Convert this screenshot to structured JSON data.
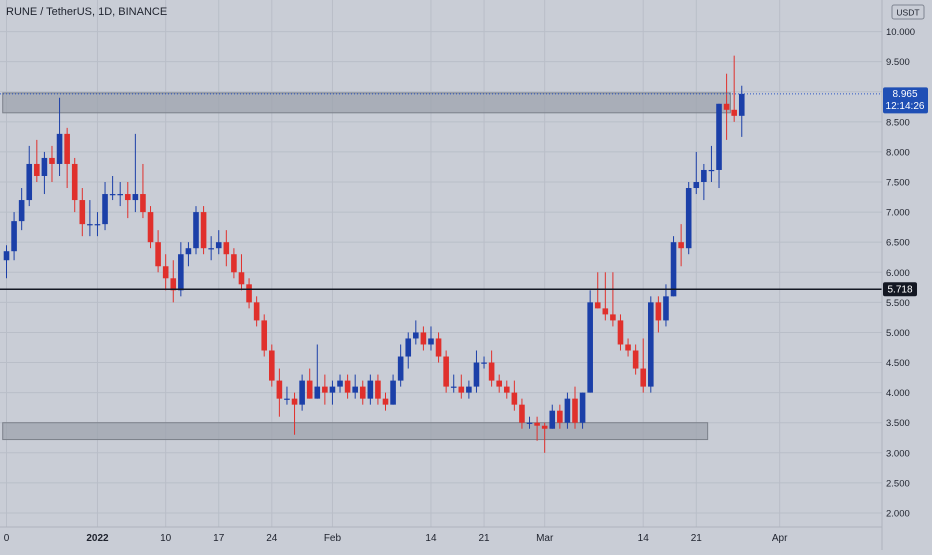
{
  "header": {
    "title": "RUNE / TetherUS, 1D, BINANCE",
    "currency": "USDT"
  },
  "price_tags": {
    "last_price": "8.965",
    "countdown": "12:14:26",
    "level": "5.718"
  },
  "colors": {
    "background": "#c9cdd6",
    "up": "#1b3fa8",
    "down": "#e0302c",
    "zone": "#9ea3ad",
    "grid": "#b9bec8",
    "tag_blue": "#1f4fb5",
    "tag_black": "#131722"
  },
  "chart_data": {
    "type": "candlestick",
    "title": "RUNE / TetherUS, 1D, BINANCE",
    "y_ticks": [
      "2.000",
      "2.500",
      "3.000",
      "3.500",
      "4.000",
      "4.500",
      "5.000",
      "5.500",
      "6.000",
      "6.500",
      "7.000",
      "7.500",
      "8.000",
      "8.500",
      "9.000",
      "9.500",
      "10.000"
    ],
    "x_ticks": [
      {
        "label": "0",
        "day": 0
      },
      {
        "label": "2022",
        "day": 12
      },
      {
        "label": "10",
        "day": 21
      },
      {
        "label": "17",
        "day": 28
      },
      {
        "label": "24",
        "day": 35
      },
      {
        "label": "Feb",
        "day": 43
      },
      {
        "label": "14",
        "day": 56
      },
      {
        "label": "21",
        "day": 63
      },
      {
        "label": "Mar",
        "day": 71
      },
      {
        "label": "14",
        "day": 84
      },
      {
        "label": "21",
        "day": 91
      },
      {
        "label": "Apr",
        "day": 102
      }
    ],
    "ylim": [
      1.85,
      10.4
    ],
    "horizontal_level": 5.718,
    "last_price": 8.965,
    "zones": [
      {
        "low": 8.65,
        "high": 8.98,
        "day_start": -0.5,
        "day_end": 95.5
      },
      {
        "low": 3.22,
        "high": 3.5,
        "day_start": -0.5,
        "day_end": 92.5
      }
    ],
    "candles": [
      {
        "o": 6.2,
        "h": 6.45,
        "l": 5.9,
        "c": 6.35
      },
      {
        "o": 6.35,
        "h": 7.0,
        "l": 6.2,
        "c": 6.85
      },
      {
        "o": 6.85,
        "h": 7.4,
        "l": 6.7,
        "c": 7.2
      },
      {
        "o": 7.2,
        "h": 8.1,
        "l": 7.1,
        "c": 7.8
      },
      {
        "o": 7.8,
        "h": 8.2,
        "l": 7.5,
        "c": 7.6
      },
      {
        "o": 7.6,
        "h": 8.0,
        "l": 7.3,
        "c": 7.9
      },
      {
        "o": 7.9,
        "h": 8.1,
        "l": 7.5,
        "c": 7.8
      },
      {
        "o": 7.8,
        "h": 8.9,
        "l": 7.6,
        "c": 8.3
      },
      {
        "o": 8.3,
        "h": 8.4,
        "l": 7.4,
        "c": 7.8
      },
      {
        "o": 7.8,
        "h": 7.9,
        "l": 7.0,
        "c": 7.2
      },
      {
        "o": 7.2,
        "h": 7.4,
        "l": 6.6,
        "c": 6.8
      },
      {
        "o": 6.8,
        "h": 7.2,
        "l": 6.6,
        "c": 6.8
      },
      {
        "o": 6.8,
        "h": 7.0,
        "l": 6.6,
        "c": 6.8
      },
      {
        "o": 6.8,
        "h": 7.5,
        "l": 6.7,
        "c": 7.3
      },
      {
        "o": 7.3,
        "h": 7.6,
        "l": 7.2,
        "c": 7.3
      },
      {
        "o": 7.3,
        "h": 7.5,
        "l": 7.1,
        "c": 7.3
      },
      {
        "o": 7.3,
        "h": 7.5,
        "l": 6.9,
        "c": 7.2
      },
      {
        "o": 7.2,
        "h": 8.3,
        "l": 7.0,
        "c": 7.3
      },
      {
        "o": 7.3,
        "h": 7.8,
        "l": 6.9,
        "c": 7.0
      },
      {
        "o": 7.0,
        "h": 7.1,
        "l": 6.4,
        "c": 6.5
      },
      {
        "o": 6.5,
        "h": 6.7,
        "l": 6.0,
        "c": 6.1
      },
      {
        "o": 6.1,
        "h": 6.3,
        "l": 5.7,
        "c": 5.9
      },
      {
        "o": 5.9,
        "h": 6.2,
        "l": 5.5,
        "c": 5.7
      },
      {
        "o": 5.7,
        "h": 6.5,
        "l": 5.6,
        "c": 6.3
      },
      {
        "o": 6.3,
        "h": 6.5,
        "l": 6.1,
        "c": 6.4
      },
      {
        "o": 6.4,
        "h": 7.1,
        "l": 6.3,
        "c": 7.0
      },
      {
        "o": 7.0,
        "h": 7.1,
        "l": 6.3,
        "c": 6.4
      },
      {
        "o": 6.4,
        "h": 6.6,
        "l": 6.2,
        "c": 6.4
      },
      {
        "o": 6.4,
        "h": 6.7,
        "l": 6.3,
        "c": 6.5
      },
      {
        "o": 6.5,
        "h": 6.7,
        "l": 6.1,
        "c": 6.3
      },
      {
        "o": 6.3,
        "h": 6.4,
        "l": 5.9,
        "c": 6.0
      },
      {
        "o": 6.0,
        "h": 6.3,
        "l": 5.7,
        "c": 5.8
      },
      {
        "o": 5.8,
        "h": 5.9,
        "l": 5.4,
        "c": 5.5
      },
      {
        "o": 5.5,
        "h": 5.6,
        "l": 5.1,
        "c": 5.2
      },
      {
        "o": 5.2,
        "h": 5.3,
        "l": 4.6,
        "c": 4.7
      },
      {
        "o": 4.7,
        "h": 4.8,
        "l": 4.1,
        "c": 4.2
      },
      {
        "o": 4.2,
        "h": 4.4,
        "l": 3.6,
        "c": 3.9
      },
      {
        "o": 3.9,
        "h": 4.1,
        "l": 3.8,
        "c": 3.9
      },
      {
        "o": 3.9,
        "h": 4.0,
        "l": 3.3,
        "c": 3.8
      },
      {
        "o": 3.8,
        "h": 4.3,
        "l": 3.7,
        "c": 4.2
      },
      {
        "o": 4.2,
        "h": 4.4,
        "l": 3.9,
        "c": 3.9
      },
      {
        "o": 3.9,
        "h": 4.8,
        "l": 3.9,
        "c": 4.1
      },
      {
        "o": 4.1,
        "h": 4.3,
        "l": 3.8,
        "c": 4.0
      },
      {
        "o": 4.0,
        "h": 4.2,
        "l": 3.8,
        "c": 4.1
      },
      {
        "o": 4.1,
        "h": 4.3,
        "l": 4.0,
        "c": 4.2
      },
      {
        "o": 4.2,
        "h": 4.3,
        "l": 3.9,
        "c": 4.0
      },
      {
        "o": 4.0,
        "h": 4.3,
        "l": 3.9,
        "c": 4.1
      },
      {
        "o": 4.1,
        "h": 4.2,
        "l": 3.8,
        "c": 3.9
      },
      {
        "o": 3.9,
        "h": 4.3,
        "l": 3.8,
        "c": 4.2
      },
      {
        "o": 4.2,
        "h": 4.3,
        "l": 3.8,
        "c": 3.9
      },
      {
        "o": 3.9,
        "h": 4.0,
        "l": 3.7,
        "c": 3.8
      },
      {
        "o": 3.8,
        "h": 4.3,
        "l": 3.8,
        "c": 4.2
      },
      {
        "o": 4.2,
        "h": 4.8,
        "l": 4.1,
        "c": 4.6
      },
      {
        "o": 4.6,
        "h": 5.0,
        "l": 4.4,
        "c": 4.9
      },
      {
        "o": 4.9,
        "h": 5.2,
        "l": 4.8,
        "c": 5.0
      },
      {
        "o": 5.0,
        "h": 5.1,
        "l": 4.7,
        "c": 4.8
      },
      {
        "o": 4.8,
        "h": 5.1,
        "l": 4.7,
        "c": 4.9
      },
      {
        "o": 4.9,
        "h": 5.0,
        "l": 4.5,
        "c": 4.6
      },
      {
        "o": 4.6,
        "h": 4.7,
        "l": 4.0,
        "c": 4.1
      },
      {
        "o": 4.1,
        "h": 4.3,
        "l": 4.0,
        "c": 4.1
      },
      {
        "o": 4.1,
        "h": 4.3,
        "l": 3.9,
        "c": 4.0
      },
      {
        "o": 4.0,
        "h": 4.2,
        "l": 3.9,
        "c": 4.1
      },
      {
        "o": 4.1,
        "h": 4.7,
        "l": 4.0,
        "c": 4.5
      },
      {
        "o": 4.5,
        "h": 4.6,
        "l": 4.4,
        "c": 4.5
      },
      {
        "o": 4.5,
        "h": 4.7,
        "l": 4.1,
        "c": 4.2
      },
      {
        "o": 4.2,
        "h": 4.3,
        "l": 4.0,
        "c": 4.1
      },
      {
        "o": 4.1,
        "h": 4.2,
        "l": 3.9,
        "c": 4.0
      },
      {
        "o": 4.0,
        "h": 4.2,
        "l": 3.7,
        "c": 3.8
      },
      {
        "o": 3.8,
        "h": 3.9,
        "l": 3.4,
        "c": 3.5
      },
      {
        "o": 3.5,
        "h": 3.6,
        "l": 3.4,
        "c": 3.5
      },
      {
        "o": 3.5,
        "h": 3.6,
        "l": 3.2,
        "c": 3.45
      },
      {
        "o": 3.45,
        "h": 3.5,
        "l": 3.0,
        "c": 3.4
      },
      {
        "o": 3.4,
        "h": 3.8,
        "l": 3.4,
        "c": 3.7
      },
      {
        "o": 3.7,
        "h": 3.8,
        "l": 3.4,
        "c": 3.5
      },
      {
        "o": 3.5,
        "h": 4.0,
        "l": 3.4,
        "c": 3.9
      },
      {
        "o": 3.9,
        "h": 4.1,
        "l": 3.4,
        "c": 3.5
      },
      {
        "o": 3.5,
        "h": 4.0,
        "l": 3.4,
        "c": 4.0
      },
      {
        "o": 4.0,
        "h": 5.7,
        "l": 4.0,
        "c": 5.5
      },
      {
        "o": 5.5,
        "h": 6.0,
        "l": 5.4,
        "c": 5.4
      },
      {
        "o": 5.4,
        "h": 6.0,
        "l": 5.2,
        "c": 5.3
      },
      {
        "o": 5.3,
        "h": 6.0,
        "l": 5.1,
        "c": 5.2
      },
      {
        "o": 5.2,
        "h": 5.3,
        "l": 4.7,
        "c": 4.8
      },
      {
        "o": 4.8,
        "h": 4.9,
        "l": 4.6,
        "c": 4.7
      },
      {
        "o": 4.7,
        "h": 4.8,
        "l": 4.3,
        "c": 4.4
      },
      {
        "o": 4.4,
        "h": 4.9,
        "l": 4.0,
        "c": 4.1
      },
      {
        "o": 4.1,
        "h": 5.6,
        "l": 4.0,
        "c": 5.5
      },
      {
        "o": 5.5,
        "h": 5.6,
        "l": 5.0,
        "c": 5.2
      },
      {
        "o": 5.2,
        "h": 5.8,
        "l": 5.1,
        "c": 5.6
      },
      {
        "o": 5.6,
        "h": 6.6,
        "l": 5.6,
        "c": 6.5
      },
      {
        "o": 6.5,
        "h": 6.8,
        "l": 6.1,
        "c": 6.4
      },
      {
        "o": 6.4,
        "h": 7.5,
        "l": 6.3,
        "c": 7.4
      },
      {
        "o": 7.4,
        "h": 8.0,
        "l": 7.3,
        "c": 7.5
      },
      {
        "o": 7.5,
        "h": 7.8,
        "l": 7.2,
        "c": 7.7
      },
      {
        "o": 7.7,
        "h": 8.1,
        "l": 7.5,
        "c": 7.7
      },
      {
        "o": 7.7,
        "h": 8.8,
        "l": 7.4,
        "c": 8.8
      },
      {
        "o": 8.8,
        "h": 9.3,
        "l": 8.2,
        "c": 8.7
      },
      {
        "o": 8.7,
        "h": 9.6,
        "l": 8.5,
        "c": 8.6
      },
      {
        "o": 8.6,
        "h": 9.1,
        "l": 8.25,
        "c": 8.965
      }
    ]
  }
}
